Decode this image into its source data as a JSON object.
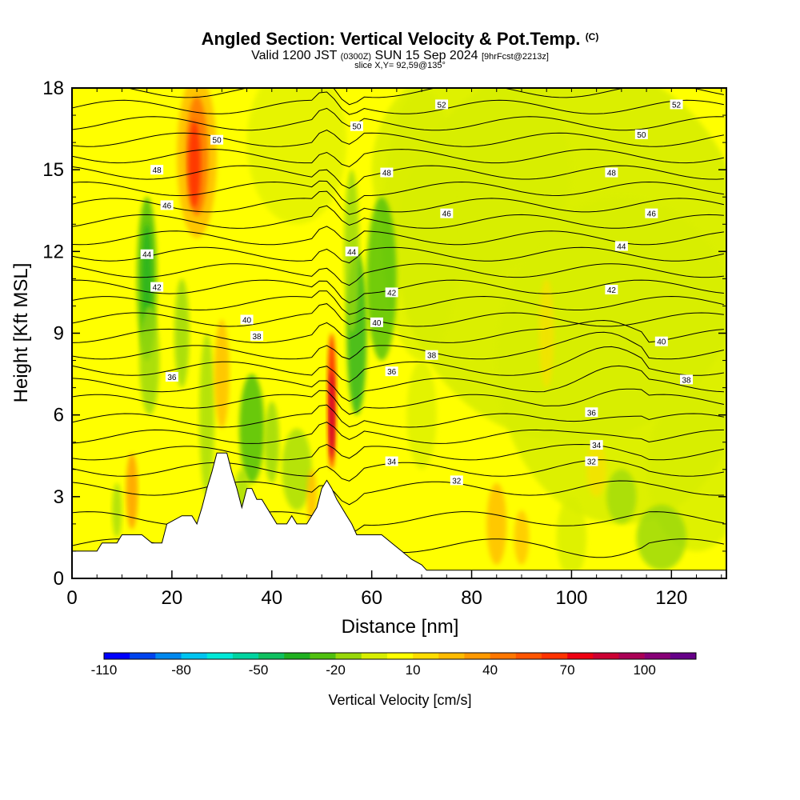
{
  "chart_data": {
    "type": "heatmap",
    "title": "Angled Section: Vertical Velocity & Pot.Temp.",
    "title_mark": "(C)",
    "subtitle_a": "Valid 1200 JST",
    "subtitle_b": "(0300Z)",
    "subtitle_c": "SUN 15 Sep 2024",
    "subtitle_d": "[9hrFcst@2213z]",
    "slice_label": "slice X,Y= 92,59@135°",
    "xlabel": "Distance [nm]",
    "ylabel": "Height [Kft MSL]",
    "xlim": [
      0,
      131
    ],
    "ylim": [
      0,
      18
    ],
    "x_ticks": [
      0,
      20,
      40,
      60,
      80,
      100,
      120
    ],
    "y_ticks": [
      0,
      3,
      6,
      9,
      12,
      15,
      18
    ],
    "colorbar": {
      "label": "Vertical Velocity [cm/s]",
      "ticks": [
        "-110",
        "-80",
        "-50",
        "-20",
        "10",
        "40",
        "70",
        "100"
      ],
      "colors": [
        "#0000ff",
        "#0044ee",
        "#0088ee",
        "#00c4f0",
        "#00e8d8",
        "#00d4a0",
        "#10c060",
        "#20b020",
        "#50c010",
        "#98d80a",
        "#d8ee00",
        "#ffff00",
        "#ffdd00",
        "#ffbb00",
        "#ff9900",
        "#ff7700",
        "#ff5500",
        "#ff3300",
        "#ee0011",
        "#cc0033",
        "#aa0055",
        "#880077",
        "#660088"
      ]
    },
    "theta_labels": [
      {
        "text": "52",
        "x": 74,
        "y": 17.4
      },
      {
        "text": "52",
        "x": 121,
        "y": 17.4
      },
      {
        "text": "50",
        "x": 29,
        "y": 16.1
      },
      {
        "text": "50",
        "x": 57,
        "y": 16.6
      },
      {
        "text": "50",
        "x": 114,
        "y": 16.3
      },
      {
        "text": "48",
        "x": 17,
        "y": 15.0
      },
      {
        "text": "48",
        "x": 63,
        "y": 14.9
      },
      {
        "text": "48",
        "x": 108,
        "y": 14.9
      },
      {
        "text": "46",
        "x": 19,
        "y": 13.7
      },
      {
        "text": "46",
        "x": 75,
        "y": 13.4
      },
      {
        "text": "46",
        "x": 116,
        "y": 13.4
      },
      {
        "text": "44",
        "x": 15,
        "y": 11.9
      },
      {
        "text": "44",
        "x": 56,
        "y": 12.0
      },
      {
        "text": "44",
        "x": 110,
        "y": 12.2
      },
      {
        "text": "42",
        "x": 17,
        "y": 10.7
      },
      {
        "text": "42",
        "x": 64,
        "y": 10.5
      },
      {
        "text": "42",
        "x": 108,
        "y": 10.6
      },
      {
        "text": "40",
        "x": 35,
        "y": 9.5
      },
      {
        "text": "40",
        "x": 61,
        "y": 9.4
      },
      {
        "text": "40",
        "x": 118,
        "y": 8.7
      },
      {
        "text": "38",
        "x": 37,
        "y": 8.9
      },
      {
        "text": "38",
        "x": 72,
        "y": 8.2
      },
      {
        "text": "38",
        "x": 123,
        "y": 7.3
      },
      {
        "text": "36",
        "x": 20,
        "y": 7.4
      },
      {
        "text": "36",
        "x": 64,
        "y": 7.6
      },
      {
        "text": "36",
        "x": 104,
        "y": 6.1
      },
      {
        "text": "34",
        "x": 105,
        "y": 4.9
      },
      {
        "text": "34",
        "x": 64,
        "y": 4.3
      },
      {
        "text": "32",
        "x": 77,
        "y": 3.6
      },
      {
        "text": "32",
        "x": 104,
        "y": 4.3
      }
    ],
    "terrain": [
      [
        0,
        1.0
      ],
      [
        2,
        1.0
      ],
      [
        3,
        1.0
      ],
      [
        5,
        1.0
      ],
      [
        6,
        1.3
      ],
      [
        9,
        1.3
      ],
      [
        10,
        1.6
      ],
      [
        14,
        1.6
      ],
      [
        16,
        1.3
      ],
      [
        18,
        1.3
      ],
      [
        19,
        2.0
      ],
      [
        22,
        2.3
      ],
      [
        24,
        2.3
      ],
      [
        25,
        2.0
      ],
      [
        26,
        2.6
      ],
      [
        27,
        3.3
      ],
      [
        28,
        3.9
      ],
      [
        29,
        4.6
      ],
      [
        31,
        4.6
      ],
      [
        32,
        3.9
      ],
      [
        33,
        3.3
      ],
      [
        34,
        2.6
      ],
      [
        35,
        3.3
      ],
      [
        36,
        3.3
      ],
      [
        37,
        2.9
      ],
      [
        38,
        2.9
      ],
      [
        39,
        2.6
      ],
      [
        40,
        2.3
      ],
      [
        41,
        2.0
      ],
      [
        42,
        2.0
      ],
      [
        43,
        2.0
      ],
      [
        44,
        2.3
      ],
      [
        45,
        2.0
      ],
      [
        46,
        2.0
      ],
      [
        47,
        2.0
      ],
      [
        48,
        2.3
      ],
      [
        49,
        2.6
      ],
      [
        50,
        3.3
      ],
      [
        51,
        3.6
      ],
      [
        52,
        3.3
      ],
      [
        53,
        2.9
      ],
      [
        54,
        2.6
      ],
      [
        55,
        2.3
      ],
      [
        56,
        2.0
      ],
      [
        57,
        1.6
      ],
      [
        58,
        1.6
      ],
      [
        60,
        1.6
      ],
      [
        62,
        1.6
      ],
      [
        64,
        1.3
      ],
      [
        66,
        1.0
      ],
      [
        68,
        0.7
      ],
      [
        70,
        0.5
      ],
      [
        71,
        0.3
      ],
      [
        72,
        0.3
      ],
      [
        80,
        0.3
      ],
      [
        90,
        0.3
      ],
      [
        100,
        0.3
      ],
      [
        110,
        0.3
      ],
      [
        120,
        0.3
      ],
      [
        131,
        0.3
      ]
    ]
  }
}
